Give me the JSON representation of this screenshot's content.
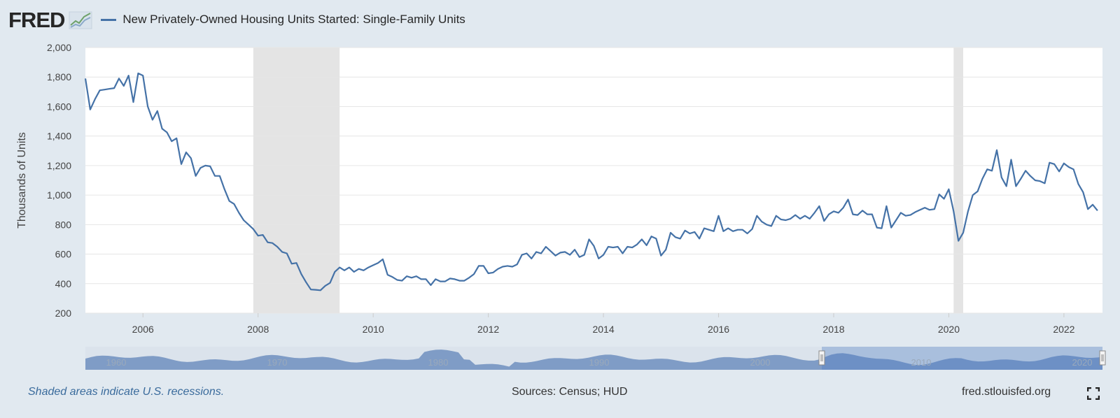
{
  "header": {
    "logo_text": "FRED",
    "series_title": "New Privately-Owned Housing Units Started: Single-Family Units"
  },
  "footer": {
    "recession_note": "Shaded areas indicate U.S. recessions.",
    "sources": "Sources: Census; HUD",
    "site": "fred.stlouisfed.org"
  },
  "icons": {
    "logo": "fred-graph-logo-icon",
    "fullscreen": "fullscreen-icon"
  },
  "colors": {
    "series": "#4572a7",
    "recession": "#e4e4e4",
    "background": "#e1e9f0",
    "navigator": "#6f8fbf"
  },
  "chart_data": {
    "type": "line",
    "title": "New Privately-Owned Housing Units Started: Single-Family Units",
    "ylabel": "Thousands of Units",
    "xlabel": "",
    "ylim": [
      200,
      2000
    ],
    "xlim": [
      2005.0,
      2022.67
    ],
    "yticks": [
      "200",
      "400",
      "600",
      "800",
      "1,000",
      "1,200",
      "1,400",
      "1,600",
      "1,800",
      "2,000"
    ],
    "xticks": [
      "2006",
      "2008",
      "2010",
      "2012",
      "2014",
      "2016",
      "2018",
      "2020",
      "2022"
    ],
    "recessions": [
      [
        2007.917,
        2009.417
      ],
      [
        2020.083,
        2020.25
      ]
    ],
    "navigator_labels": [
      "1960",
      "1970",
      "1980",
      "1990",
      "2000",
      "2010",
      "2020"
    ],
    "series": [
      {
        "name": "New Privately-Owned Housing Units Started: Single-Family Units",
        "start": 2005.0,
        "step_months": 1,
        "values": [
          1790,
          1580,
          1650,
          1710,
          1715,
          1720,
          1725,
          1790,
          1740,
          1810,
          1630,
          1825,
          1810,
          1600,
          1510,
          1570,
          1450,
          1425,
          1365,
          1385,
          1210,
          1290,
          1250,
          1130,
          1185,
          1200,
          1195,
          1130,
          1130,
          1040,
          960,
          940,
          880,
          830,
          800,
          770,
          725,
          730,
          680,
          675,
          650,
          615,
          605,
          535,
          540,
          465,
          410,
          360,
          358,
          355,
          385,
          405,
          480,
          510,
          490,
          510,
          480,
          500,
          490,
          510,
          525,
          540,
          565,
          460,
          445,
          425,
          420,
          450,
          440,
          450,
          430,
          430,
          390,
          430,
          415,
          415,
          435,
          430,
          420,
          420,
          440,
          465,
          520,
          520,
          470,
          475,
          500,
          515,
          520,
          515,
          530,
          595,
          605,
          570,
          615,
          605,
          650,
          620,
          590,
          610,
          615,
          595,
          630,
          580,
          595,
          700,
          655,
          570,
          595,
          650,
          645,
          650,
          605,
          650,
          645,
          665,
          700,
          660,
          720,
          705,
          590,
          630,
          745,
          715,
          705,
          760,
          740,
          750,
          705,
          775,
          765,
          755,
          860,
          755,
          775,
          755,
          765,
          765,
          740,
          770,
          860,
          820,
          800,
          790,
          860,
          835,
          830,
          840,
          865,
          840,
          860,
          840,
          880,
          925,
          825,
          870,
          890,
          880,
          915,
          970,
          870,
          865,
          895,
          870,
          870,
          780,
          775,
          925,
          780,
          830,
          880,
          860,
          865,
          885,
          900,
          915,
          900,
          905,
          1005,
          975,
          1040,
          890,
          690,
          745,
          890,
          1000,
          1025,
          1110,
          1175,
          1165,
          1305,
          1120,
          1060,
          1240,
          1060,
          1110,
          1165,
          1130,
          1100,
          1095,
          1080,
          1220,
          1210,
          1160,
          1215,
          1190,
          1175,
          1075,
          1020,
          905,
          935,
          895
        ]
      }
    ]
  }
}
